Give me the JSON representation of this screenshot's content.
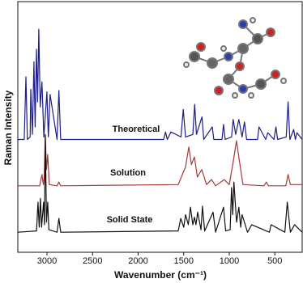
{
  "chart_data": {
    "type": "line",
    "x_label": "Wavenumber (cm⁻¹)",
    "y_label": "Raman Intensity",
    "xlim": [
      3320,
      200
    ],
    "ylim": [
      0,
      100
    ],
    "xticks": [
      3000,
      2500,
      2000,
      1500,
      1000,
      500
    ],
    "series": [
      {
        "name": "Theoretical",
        "color": "#1c1c8a",
        "x": [
          3320,
          3250,
          3231,
          3215,
          3185,
          3178,
          3160,
          3143,
          3130,
          3116,
          3103,
          3090,
          3075,
          3055,
          3035,
          3001,
          2985,
          2966,
          2890,
          2869,
          2850,
          1720,
          1700,
          1680,
          1640,
          1530,
          1505,
          1480,
          1400,
          1380,
          1360,
          1300,
          1280,
          1187,
          1170,
          1080,
          1063,
          1045,
          975,
          957,
          930,
          895,
          860,
          833,
          810,
          690,
          674,
          600,
          577,
          510,
          488,
          470,
          375,
          355,
          335,
          293,
          275,
          258,
          200
        ],
        "values": [
          45,
          45,
          70,
          45,
          46,
          65,
          47,
          76,
          50,
          81,
          60,
          89,
          58,
          68,
          46,
          64,
          46,
          63,
          45,
          64.5,
          45,
          45,
          48,
          45,
          48,
          46,
          57,
          46,
          47,
          59,
          47,
          54,
          45,
          50,
          45,
          45,
          51,
          45,
          46,
          53,
          47,
          53,
          46,
          52,
          45,
          45,
          50,
          45,
          47.7,
          45,
          50,
          45,
          46,
          60,
          45,
          49,
          45,
          47.7,
          45
        ]
      },
      {
        "name": "Solution",
        "color": "#a33a3a",
        "x": [
          3320,
          3080,
          3055,
          3040,
          3030,
          3019,
          3005,
          2992,
          2975,
          2890,
          2869,
          2850,
          1560,
          1515,
          1480,
          1444,
          1415,
          1382,
          1350,
          1302,
          1250,
          1196,
          1150,
          1055,
          1000,
          957,
          921,
          887,
          850,
          620,
          594,
          570,
          380,
          355,
          330,
          200
        ],
        "values": [
          26.5,
          26.5,
          31,
          27,
          30,
          46.5,
          33,
          39,
          27,
          26.5,
          28,
          26.5,
          27,
          31,
          34,
          42,
          35,
          38,
          30,
          33,
          27,
          29,
          26.5,
          29,
          27,
          36,
          44.5,
          36,
          27,
          26.5,
          28,
          26.5,
          26.5,
          31,
          27,
          27
        ]
      },
      {
        "name": "Solid State",
        "color": "#111111",
        "x": [
          3320,
          3115,
          3099,
          3085,
          3072,
          3060,
          3037,
          3028,
          3019,
          3005,
          2992,
          2980,
          2890,
          2869,
          2850,
          1560,
          1532,
          1500,
          1479,
          1450,
          1426,
          1400,
          1382,
          1365,
          1347,
          1310,
          1294,
          1270,
          1178,
          1150,
          1063,
          1040,
          990,
          975,
          962,
          949,
          920,
          895,
          875,
          860,
          800,
          754,
          560,
          541,
          390,
          364,
          330,
          284,
          200
        ],
        "values": [
          8,
          8.5,
          20,
          10,
          21.5,
          10,
          20,
          11,
          47,
          12,
          20,
          9,
          8,
          13.5,
          8,
          8.5,
          13.5,
          10,
          15,
          11,
          18,
          11,
          14,
          11,
          16,
          9,
          18.4,
          8.5,
          16,
          8,
          18,
          8.5,
          9,
          25.8,
          15,
          28,
          12,
          18,
          10,
          15,
          8,
          11,
          8,
          11,
          8,
          20,
          8,
          11,
          8
        ]
      }
    ]
  }
}
